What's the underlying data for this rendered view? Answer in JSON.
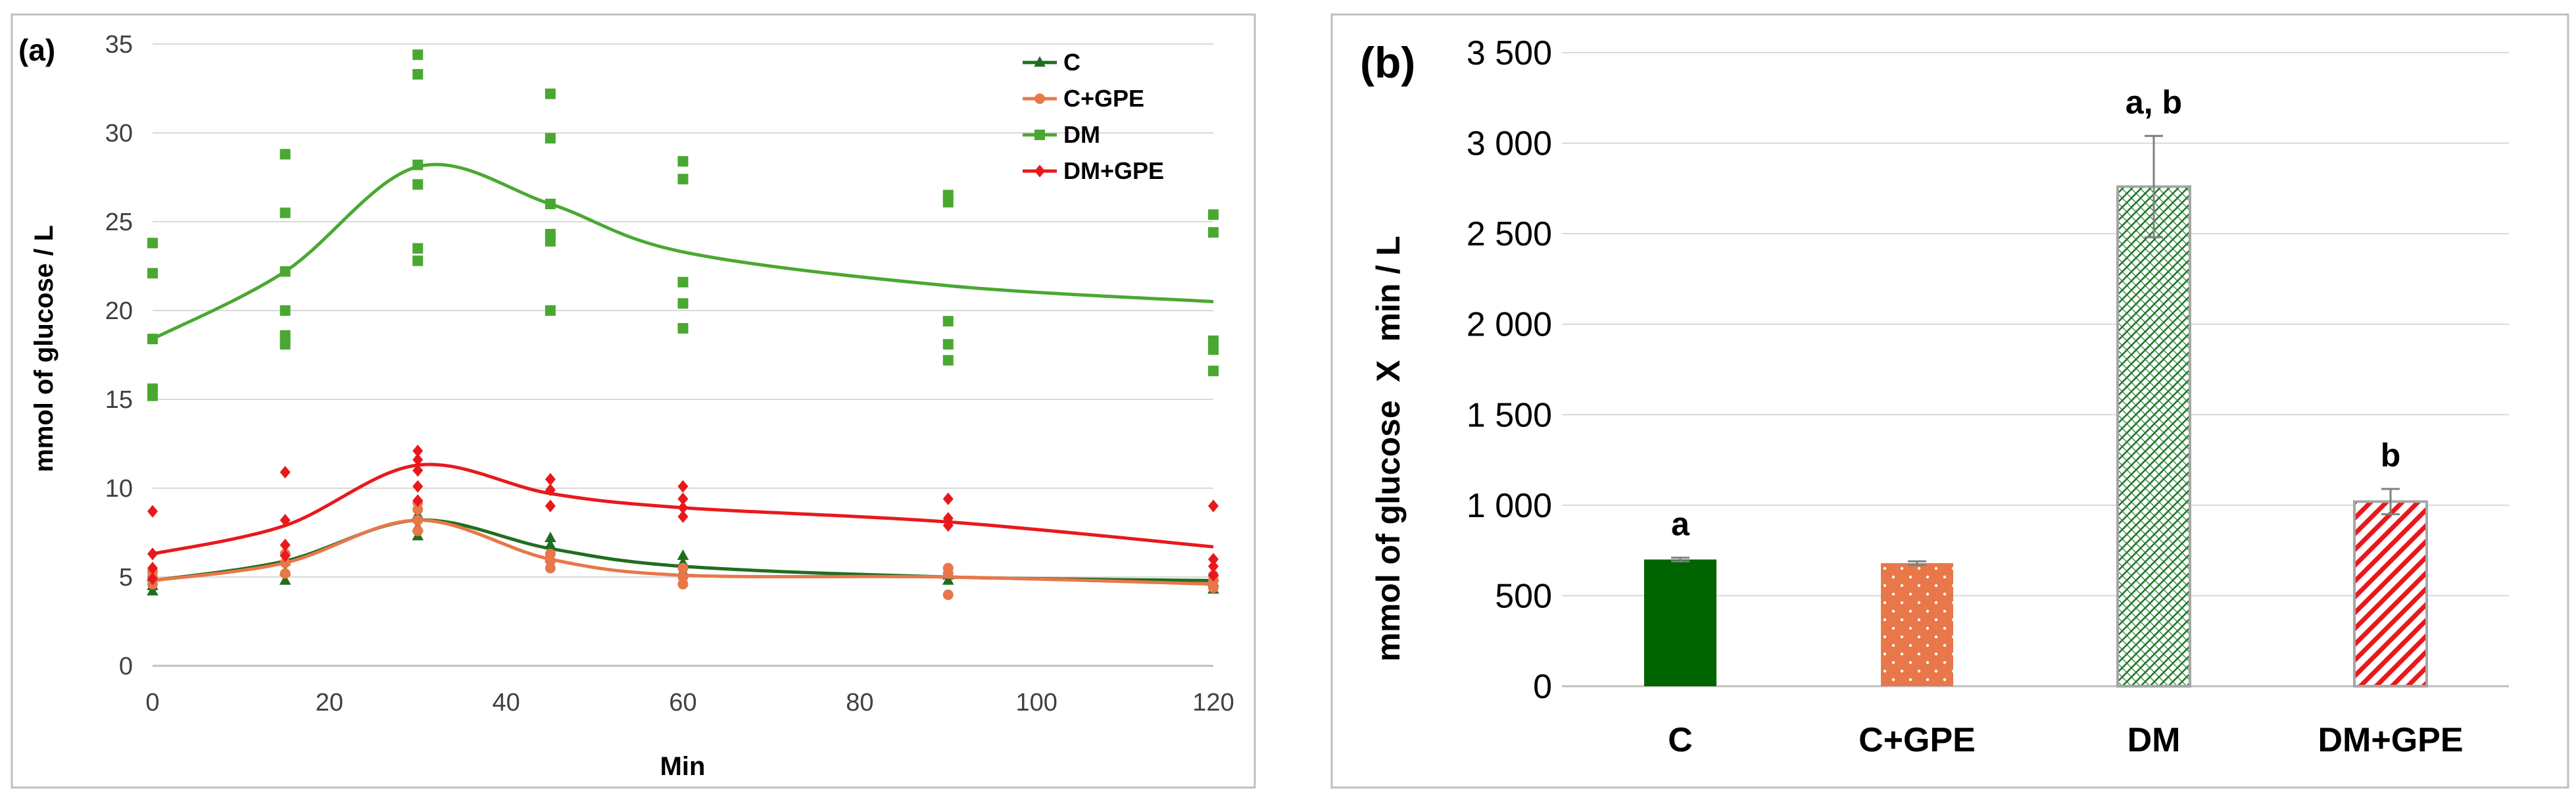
{
  "chart_data": [
    {
      "type": "line",
      "panel_label": "(a)",
      "title": "",
      "xlabel": "Min",
      "ylabel": "mmol of glucose / L",
      "xlim": [
        0,
        120
      ],
      "ylim": [
        0,
        35
      ],
      "x_ticks": [
        "0",
        "20",
        "40",
        "60",
        "80",
        "100",
        "120"
      ],
      "y_ticks": [
        "0",
        "5",
        "10",
        "15",
        "20",
        "25",
        "30",
        "35"
      ],
      "grid": "horizontal",
      "legend_position": "top-right",
      "x": [
        0,
        15,
        30,
        45,
        60,
        90,
        120
      ],
      "series": [
        {
          "name": "C",
          "color": "#1f6e1f",
          "marker": "triangle",
          "mean": [
            4.8,
            5.9,
            8.2,
            6.6,
            5.6,
            5.0,
            4.8
          ],
          "points": [
            [
              0,
              4.2
            ],
            [
              0,
              4.5
            ],
            [
              0,
              5.0
            ],
            [
              15,
              4.8
            ],
            [
              15,
              5.3
            ],
            [
              15,
              5.9
            ],
            [
              30,
              7.3
            ],
            [
              30,
              7.8
            ],
            [
              30,
              8.5
            ],
            [
              45,
              6.1
            ],
            [
              45,
              6.8
            ],
            [
              45,
              7.2
            ],
            [
              60,
              5.3
            ],
            [
              60,
              5.8
            ],
            [
              60,
              6.2
            ],
            [
              90,
              4.8
            ],
            [
              90,
              5.1
            ],
            [
              120,
              4.3
            ],
            [
              120,
              4.7
            ],
            [
              120,
              5.0
            ]
          ]
        },
        {
          "name": "C+GPE",
          "color": "#e8774a",
          "marker": "circle",
          "mean": [
            4.8,
            5.8,
            8.2,
            6.0,
            5.1,
            5.0,
            4.6
          ],
          "points": [
            [
              0,
              4.6
            ],
            [
              0,
              5.0
            ],
            [
              0,
              5.3
            ],
            [
              15,
              5.2
            ],
            [
              15,
              5.8
            ],
            [
              15,
              6.3
            ],
            [
              30,
              7.6
            ],
            [
              30,
              8.2
            ],
            [
              30,
              8.8
            ],
            [
              30,
              9.2
            ],
            [
              45,
              5.5
            ],
            [
              45,
              5.9
            ],
            [
              45,
              6.3
            ],
            [
              60,
              4.6
            ],
            [
              60,
              5.0
            ],
            [
              60,
              5.5
            ],
            [
              90,
              4.0
            ],
            [
              90,
              5.2
            ],
            [
              90,
              5.5
            ],
            [
              120,
              4.4
            ],
            [
              120,
              4.8
            ],
            [
              120,
              5.1
            ]
          ]
        },
        {
          "name": "DM",
          "color": "#4aa832",
          "marker": "square",
          "mean": [
            18.4,
            22.2,
            28.1,
            26.0,
            23.3,
            21.4,
            20.5
          ],
          "points": [
            [
              0,
              15.2
            ],
            [
              0,
              15.6
            ],
            [
              0,
              18.4
            ],
            [
              0,
              22.1
            ],
            [
              0,
              23.8
            ],
            [
              15,
              18.1
            ],
            [
              15,
              18.6
            ],
            [
              15,
              20.0
            ],
            [
              15,
              22.2
            ],
            [
              15,
              25.5
            ],
            [
              15,
              28.8
            ],
            [
              30,
              22.8
            ],
            [
              30,
              23.5
            ],
            [
              30,
              27.1
            ],
            [
              30,
              28.2
            ],
            [
              30,
              33.3
            ],
            [
              30,
              34.4
            ],
            [
              45,
              20.0
            ],
            [
              45,
              23.9
            ],
            [
              45,
              24.3
            ],
            [
              45,
              26.0
            ],
            [
              45,
              29.7
            ],
            [
              45,
              32.2
            ],
            [
              60,
              19.0
            ],
            [
              60,
              20.4
            ],
            [
              60,
              21.6
            ],
            [
              60,
              27.4
            ],
            [
              60,
              28.4
            ],
            [
              90,
              17.2
            ],
            [
              90,
              18.1
            ],
            [
              90,
              19.4
            ],
            [
              90,
              26.1
            ],
            [
              90,
              26.5
            ],
            [
              120,
              16.6
            ],
            [
              120,
              17.8
            ],
            [
              120,
              18.3
            ],
            [
              120,
              24.4
            ],
            [
              120,
              25.4
            ]
          ]
        },
        {
          "name": "DM+GPE",
          "color": "#e8191c",
          "marker": "diamond",
          "mean": [
            6.3,
            7.9,
            11.3,
            9.7,
            8.9,
            8.1,
            6.7
          ],
          "points": [
            [
              0,
              4.9
            ],
            [
              0,
              5.5
            ],
            [
              0,
              6.3
            ],
            [
              0,
              8.7
            ],
            [
              15,
              6.2
            ],
            [
              15,
              6.8
            ],
            [
              15,
              8.2
            ],
            [
              15,
              10.9
            ],
            [
              30,
              9.3
            ],
            [
              30,
              10.1
            ],
            [
              30,
              11.0
            ],
            [
              30,
              11.6
            ],
            [
              30,
              12.1
            ],
            [
              45,
              9.0
            ],
            [
              45,
              9.9
            ],
            [
              45,
              10.5
            ],
            [
              60,
              8.4
            ],
            [
              60,
              8.9
            ],
            [
              60,
              9.4
            ],
            [
              60,
              10.1
            ],
            [
              90,
              7.9
            ],
            [
              90,
              8.3
            ],
            [
              90,
              9.4
            ],
            [
              120,
              5.1
            ],
            [
              120,
              5.6
            ],
            [
              120,
              6.0
            ],
            [
              120,
              9.0
            ]
          ]
        }
      ]
    },
    {
      "type": "bar",
      "panel_label": "(b)",
      "title": "",
      "xlabel": "",
      "ylabel": "mmol of glucose  X  min / L",
      "ylim": [
        0,
        3500
      ],
      "y_ticks": [
        "0",
        "500",
        "1 000",
        "1 500",
        "2 000",
        "2 500",
        "3 000",
        "3 500"
      ],
      "grid": "horizontal",
      "categories": [
        "C",
        "C+GPE",
        "DM",
        "DM+GPE"
      ],
      "values": [
        700,
        680,
        2760,
        1020
      ],
      "errors": [
        10,
        10,
        280,
        70
      ],
      "significance": [
        "a",
        "",
        "a, b",
        "b"
      ],
      "colors": [
        "#006400",
        "#e8774a",
        "#ffffff",
        "#ffffff"
      ],
      "patterns": [
        "solid",
        "dots",
        "green-crosshatch",
        "red-diagonal"
      ]
    }
  ]
}
